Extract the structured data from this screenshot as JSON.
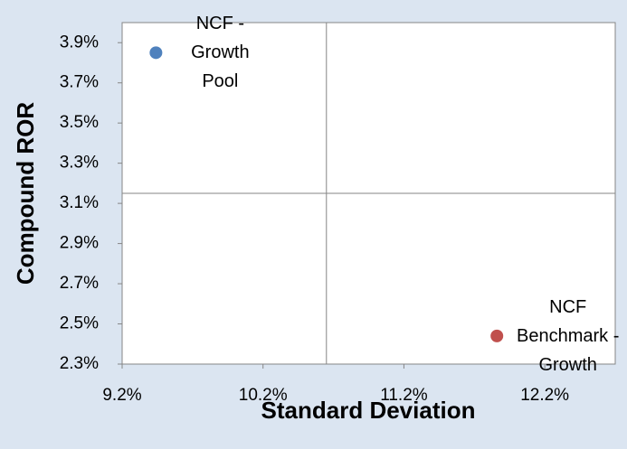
{
  "chart_data": {
    "type": "scatter",
    "x_label": "Standard Deviation",
    "y_label": "Compound ROR",
    "xlim": [
      9.2,
      12.7
    ],
    "ylim": [
      2.3,
      4.0
    ],
    "xticks": [
      {
        "value": 9.2,
        "label": "9.2%"
      },
      {
        "value": 10.2,
        "label": "10.2%"
      },
      {
        "value": 11.2,
        "label": "11.2%"
      },
      {
        "value": 12.2,
        "label": "12.2%"
      }
    ],
    "yticks": [
      {
        "value": 2.3,
        "label": "2.3%"
      },
      {
        "value": 2.5,
        "label": "2.5%"
      },
      {
        "value": 2.7,
        "label": "2.7%"
      },
      {
        "value": 2.9,
        "label": "2.9%"
      },
      {
        "value": 3.1,
        "label": "3.1%"
      },
      {
        "value": 3.3,
        "label": "3.3%"
      },
      {
        "value": 3.5,
        "label": "3.5%"
      },
      {
        "value": 3.7,
        "label": "3.7%"
      },
      {
        "value": 3.9,
        "label": "3.9%"
      }
    ],
    "crosshair_x": 10.65,
    "crosshair_y": 3.15,
    "series": [
      {
        "name": "NCF - Growth Pool",
        "color": "#4f81bd",
        "x": [
          9.44
        ],
        "values": [
          3.85
        ]
      },
      {
        "name": "NCF Benchmark - Growth",
        "color": "#c0504d",
        "x": [
          11.86
        ],
        "values": [
          2.44
        ]
      }
    ]
  }
}
